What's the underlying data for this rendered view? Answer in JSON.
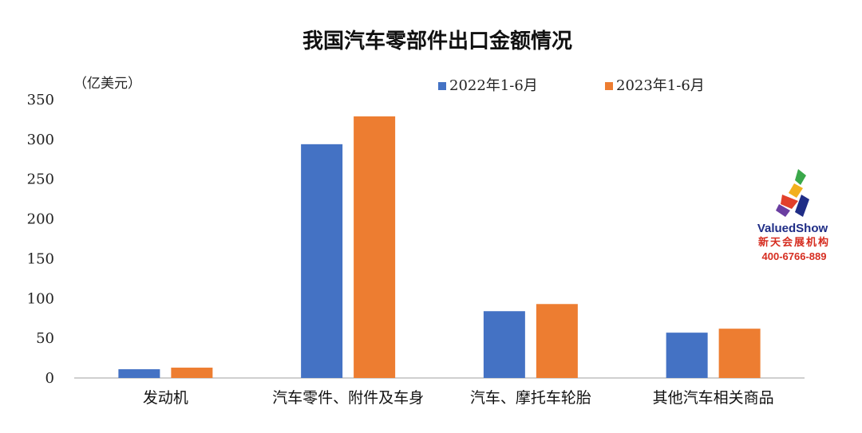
{
  "chart_data": {
    "type": "bar",
    "title": "我国汽车零部件出口金额情况",
    "ylabel": "（亿美元）",
    "ylim": [
      0,
      350
    ],
    "yticks": [
      0,
      50,
      100,
      150,
      200,
      250,
      300,
      350
    ],
    "categories": [
      "发动机",
      "汽车零件、附件及车身",
      "汽车、摩托车轮胎",
      "其他汽车相关商品"
    ],
    "series": [
      {
        "name": "2022年1-6月",
        "color": "#4472c4",
        "values": [
          11,
          294,
          84,
          57
        ]
      },
      {
        "name": "2023年1-6月",
        "color": "#ed7d31",
        "values": [
          13,
          329,
          93,
          62
        ]
      }
    ],
    "legend": "top-right",
    "grid": false
  },
  "watermark": {
    "brand": "ValuedShow",
    "subtitle": "新天会展机构",
    "phone": "400-6766-889",
    "icon": "valuedshow-logo-icon"
  }
}
